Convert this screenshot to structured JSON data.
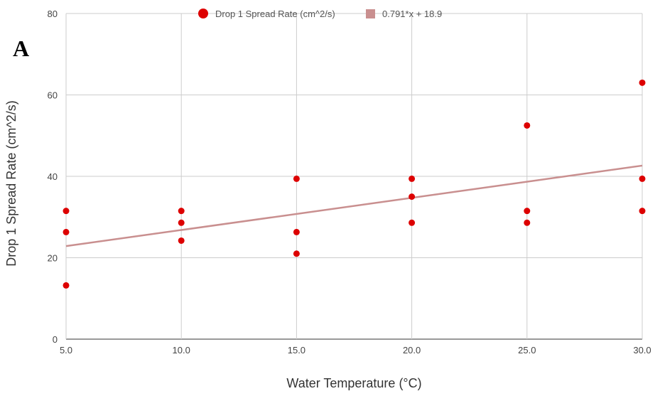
{
  "panel_label": "A",
  "chart_data": {
    "type": "scatter",
    "title": "",
    "xlabel": "Water Temperature (°C)",
    "ylabel": "Drop 1 Spread Rate (cm^2/s)",
    "xlim": [
      5,
      30
    ],
    "ylim": [
      0,
      80
    ],
    "x_ticks": [
      5,
      10,
      15,
      20,
      25,
      30
    ],
    "x_tick_labels": [
      "5.0",
      "10.0",
      "15.0",
      "20.0",
      "25.0",
      "30.0"
    ],
    "y_ticks": [
      0,
      20,
      40,
      60,
      80
    ],
    "y_tick_labels": [
      "0",
      "20",
      "40",
      "60",
      "80"
    ],
    "grid": true,
    "legend_position": "top",
    "series": [
      {
        "name": "Drop 1 Spread Rate (cm^2/s)",
        "color": "#dd0000",
        "points": [
          [
            5,
            31.5
          ],
          [
            5,
            26.3
          ],
          [
            5,
            13.2
          ],
          [
            10,
            31.5
          ],
          [
            10,
            28.6
          ],
          [
            10,
            24.2
          ],
          [
            15,
            39.4
          ],
          [
            15,
            26.3
          ],
          [
            15,
            21.0
          ],
          [
            20,
            39.4
          ],
          [
            20,
            35.0
          ],
          [
            20,
            28.6
          ],
          [
            25,
            52.5
          ],
          [
            25,
            31.5
          ],
          [
            25,
            28.6
          ],
          [
            30,
            63.0
          ],
          [
            30,
            39.4
          ],
          [
            30,
            31.5
          ]
        ]
      }
    ],
    "trendline": {
      "label": "0.791*x + 18.9",
      "slope": 0.791,
      "intercept": 18.9,
      "color": "#c98f8f"
    }
  }
}
